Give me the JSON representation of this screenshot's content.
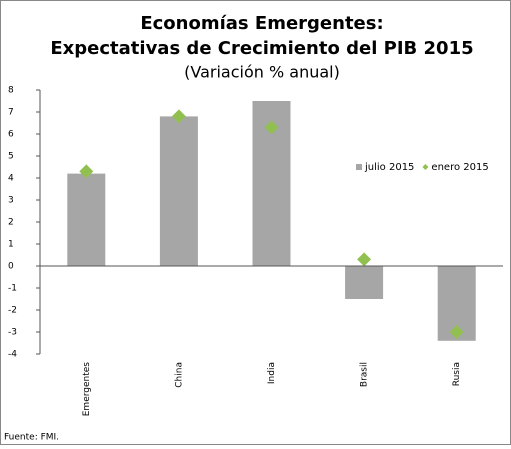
{
  "chart_data": {
    "type": "bar",
    "title": [
      "Economías Emergentes:",
      "Expectativas de Crecimiento del PIB 2015"
    ],
    "subtitle": "(Variación % anual)",
    "categories": [
      "Emergentes",
      "China",
      "India",
      "Brasil",
      "Rusia"
    ],
    "series": [
      {
        "name": "julio  2015",
        "type": "bar",
        "color": "#a6a6a6",
        "values": [
          4.2,
          6.8,
          7.5,
          -1.5,
          -3.4
        ]
      },
      {
        "name": "enero 2015",
        "type": "marker",
        "color": "#92c050",
        "values": [
          4.3,
          6.8,
          6.3,
          0.3,
          -3.0
        ]
      }
    ],
    "ylim": [
      -4,
      8
    ],
    "yticks": [
      -4,
      -3,
      -2,
      -1,
      0,
      1,
      2,
      3,
      4,
      5,
      6,
      7,
      8
    ],
    "legend": "right",
    "source": "Fuente: FMI."
  }
}
